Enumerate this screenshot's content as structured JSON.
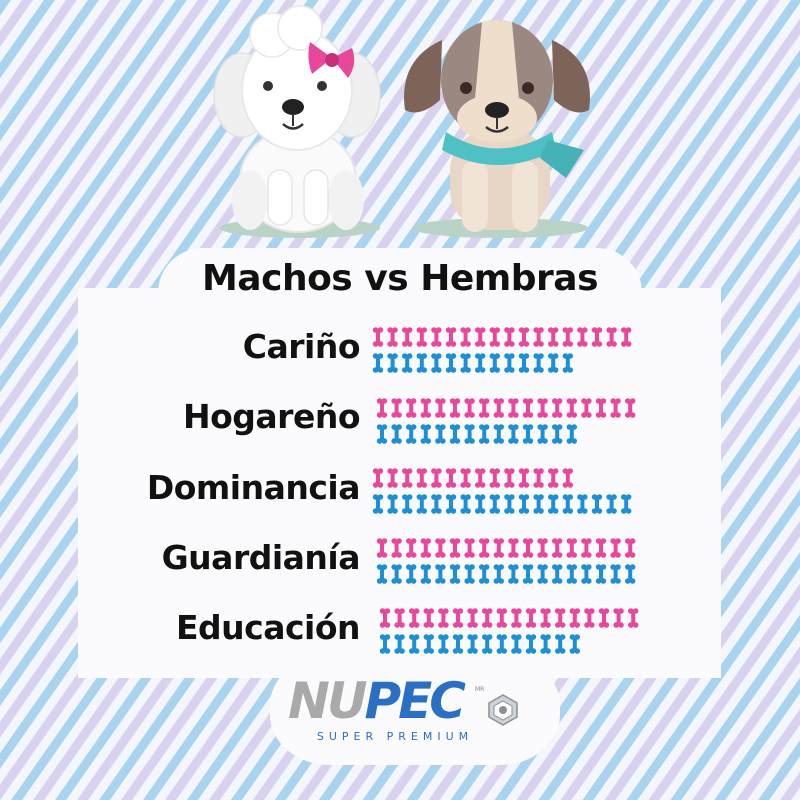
{
  "chart_data": {
    "type": "bar",
    "title": "Machos vs Hembras",
    "categories": [
      "Cariño",
      "Hogareño",
      "Dominancia",
      "Guardianía",
      "Educación"
    ],
    "series": [
      {
        "color": "#e8489c",
        "values": [
          18,
          18,
          14,
          18,
          18
        ]
      },
      {
        "color": "#1d8fd6",
        "values": [
          14,
          14,
          18,
          18,
          14
        ]
      }
    ]
  },
  "logo": {
    "brand_part1": "NU",
    "brand_part2": "PEC",
    "trademark": "MR",
    "tagline": "SUPER PREMIUM"
  },
  "colors": {
    "stripe_blue": "#a9d3ef",
    "stripe_lavender": "#d9d2ee",
    "background": "#f3f6fb",
    "panel": "#fbfbfd"
  }
}
